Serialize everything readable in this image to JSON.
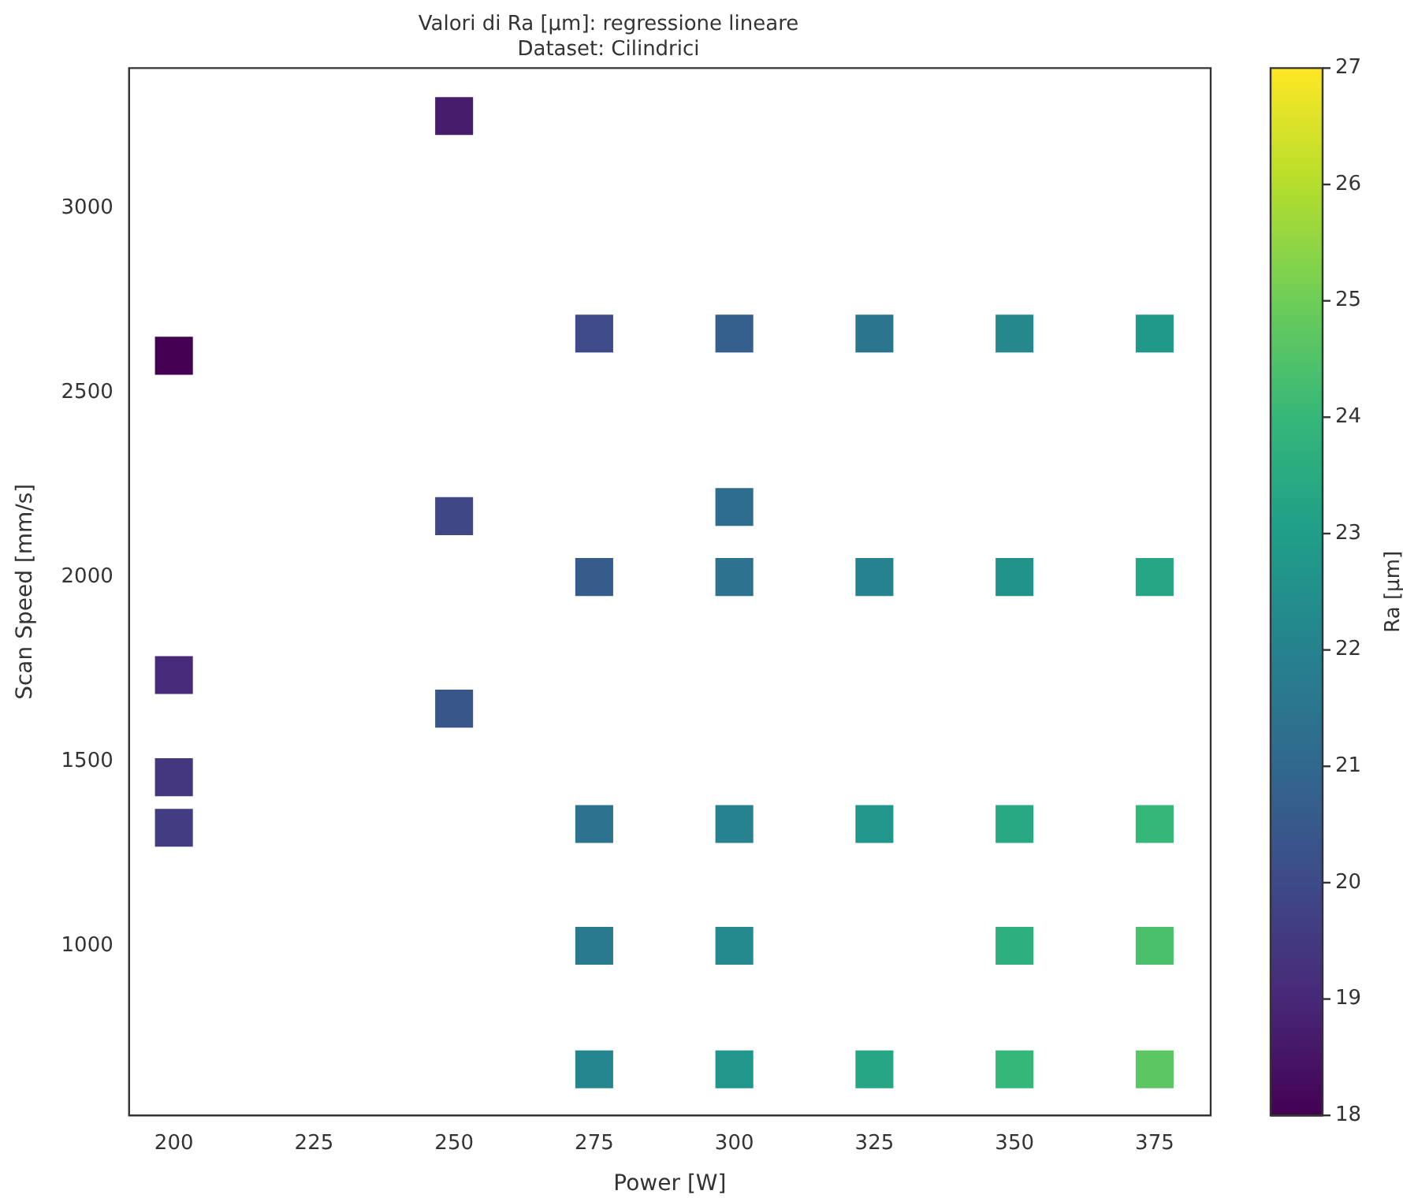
{
  "chart_data": {
    "type": "scatter",
    "title": "Valori di Ra [µm]: regressione lineare",
    "subtitle": "Dataset: Cilindrici",
    "xlabel": "Power [W]",
    "ylabel": "Scan Speed [mm/s]",
    "clabel": "Ra [µm]",
    "x": [
      250,
      200,
      275,
      300,
      325,
      350,
      375,
      250,
      300,
      275,
      300,
      325,
      350,
      375,
      200,
      250,
      200,
      200,
      275,
      300,
      325,
      350,
      375,
      275,
      300,
      350,
      375,
      275,
      300,
      325,
      350,
      375
    ],
    "values": [
      3250,
      2600,
      2660,
      2660,
      2660,
      2660,
      2660,
      2165,
      2190,
      2000,
      2000,
      2000,
      2000,
      2000,
      1734,
      1643,
      1457,
      1320,
      1330,
      1330,
      1330,
      1330,
      1330,
      1000,
      1000,
      1000,
      1000,
      665,
      665,
      665,
      665,
      665
    ],
    "cvalues": [
      18.7,
      18.0,
      20.0,
      20.7,
      21.5,
      22.2,
      22.8,
      19.9,
      21.2,
      20.6,
      21.4,
      22.0,
      22.6,
      23.3,
      19.1,
      20.4,
      19.4,
      19.6,
      21.4,
      22.0,
      22.7,
      23.4,
      24.0,
      21.7,
      22.3,
      23.7,
      24.4,
      22.1,
      22.7,
      23.3,
      24.0,
      24.7
    ],
    "marker": "square",
    "xlim": [
      192,
      385
    ],
    "ylim": [
      540,
      3380
    ],
    "xticks": [
      200,
      225,
      250,
      275,
      300,
      325,
      350,
      375
    ],
    "yticks": [
      1000,
      1500,
      2000,
      2500,
      3000
    ],
    "clim": [
      18,
      27
    ],
    "cticks": [
      18,
      19,
      20,
      21,
      22,
      23,
      24,
      25,
      26,
      27
    ]
  }
}
